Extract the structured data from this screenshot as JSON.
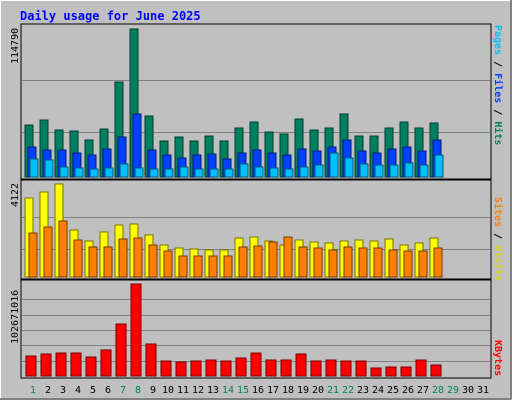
{
  "title": "Daily usage for June 2025",
  "colors": {
    "background": "#C0C0C0",
    "title": "#0000FF",
    "pages": "#00C0FF",
    "files": "#0040FF",
    "hits": "#008060",
    "visits": "#FFFF00",
    "sites": "#FF8000",
    "kbytes": "#FF0000",
    "weekday_label": "#000080",
    "weekend_label": "#00805C"
  },
  "legend": {
    "top": {
      "pages": "Pages",
      "sep1": " / ",
      "files": "Files",
      "sep2": " / ",
      "hits": "Hits"
    },
    "middle": {
      "sites": "Sites",
      "sep": " / ",
      "visits": "Visits"
    },
    "bottom": {
      "kbytes": "KBytes"
    }
  },
  "chart_data": {
    "type": "bar",
    "categories": [
      "1",
      "2",
      "3",
      "4",
      "5",
      "6",
      "7",
      "8",
      "9",
      "10",
      "11",
      "12",
      "13",
      "14",
      "15",
      "16",
      "17",
      "18",
      "19",
      "20",
      "21",
      "22",
      "23",
      "24",
      "25",
      "26",
      "27",
      "28",
      "29",
      "30",
      "31"
    ],
    "weekend_days": [
      1,
      7,
      8,
      14,
      15,
      21,
      22,
      28,
      29
    ],
    "panels": [
      {
        "id": "top",
        "ymax_label": "114790",
        "ymax": 114790,
        "series": [
          {
            "name": "Hits",
            "values": [
              40000,
              44000,
              36500,
              36000,
              29000,
              37000,
              74000,
              114790,
              47000,
              28000,
              31000,
              28000,
              32000,
              28000,
              38000,
              43000,
              35000,
              33000,
              45000,
              36500,
              38000,
              49000,
              32000,
              32000,
              38000,
              43000,
              38000,
              42000,
              0,
              0,
              0
            ]
          },
          {
            "name": "Files",
            "values": [
              23000,
              21000,
              21000,
              19000,
              17000,
              22000,
              31000,
              49000,
              21000,
              17000,
              15000,
              17000,
              18000,
              14000,
              19000,
              21000,
              19000,
              17000,
              22000,
              20000,
              23000,
              29000,
              20000,
              19000,
              22000,
              23000,
              20000,
              29000,
              0,
              0,
              0
            ]
          },
          {
            "name": "Pages",
            "values": [
              14000,
              13000,
              8000,
              7000,
              6000,
              7000,
              10000,
              7000,
              6000,
              6000,
              8000,
              6000,
              6000,
              6000,
              10000,
              8000,
              7000,
              6000,
              8000,
              9000,
              19000,
              15000,
              10000,
              9000,
              9000,
              11000,
              9000,
              17000,
              0,
              0,
              0
            ]
          }
        ]
      },
      {
        "id": "middle",
        "ymax_label": "4122",
        "ymax": 4122,
        "series": [
          {
            "name": "Visits",
            "values": [
              3500,
              3770,
              4122,
              2090,
              1600,
              1980,
              2300,
              2330,
              1850,
              1400,
              1280,
              1250,
              1200,
              1200,
              1750,
              1780,
              1600,
              1420,
              1650,
              1550,
              1500,
              1600,
              1650,
              1580,
              1700,
              1420,
              1500,
              1750,
              0,
              0,
              0
            ]
          },
          {
            "name": "Sites",
            "values": [
              1970,
              2200,
              2460,
              1630,
              1330,
              1350,
              1690,
              1750,
              1400,
              1150,
              950,
              950,
              950,
              950,
              1350,
              1380,
              1550,
              1780,
              1350,
              1290,
              1200,
              1350,
              1300,
              1300,
              1200,
              1150,
              1150,
              1300,
              0,
              0,
              0
            ]
          }
        ]
      },
      {
        "id": "bottom",
        "ymax_label": "102671016",
        "ymax": 102671016,
        "series": [
          {
            "name": "KBytes",
            "values": [
              22000000,
              24500000,
              25500000,
              25500000,
              21000000,
              28500000,
              58000000,
              102671016,
              36000000,
              16500000,
              16000000,
              16500000,
              18000000,
              16500000,
              20000000,
              25500000,
              17500000,
              18000000,
              25000000,
              16500000,
              18000000,
              16500000,
              16500000,
              8500000,
              10000000,
              10500000,
              18000000,
              12000000,
              0,
              0,
              0
            ]
          }
        ]
      }
    ]
  }
}
